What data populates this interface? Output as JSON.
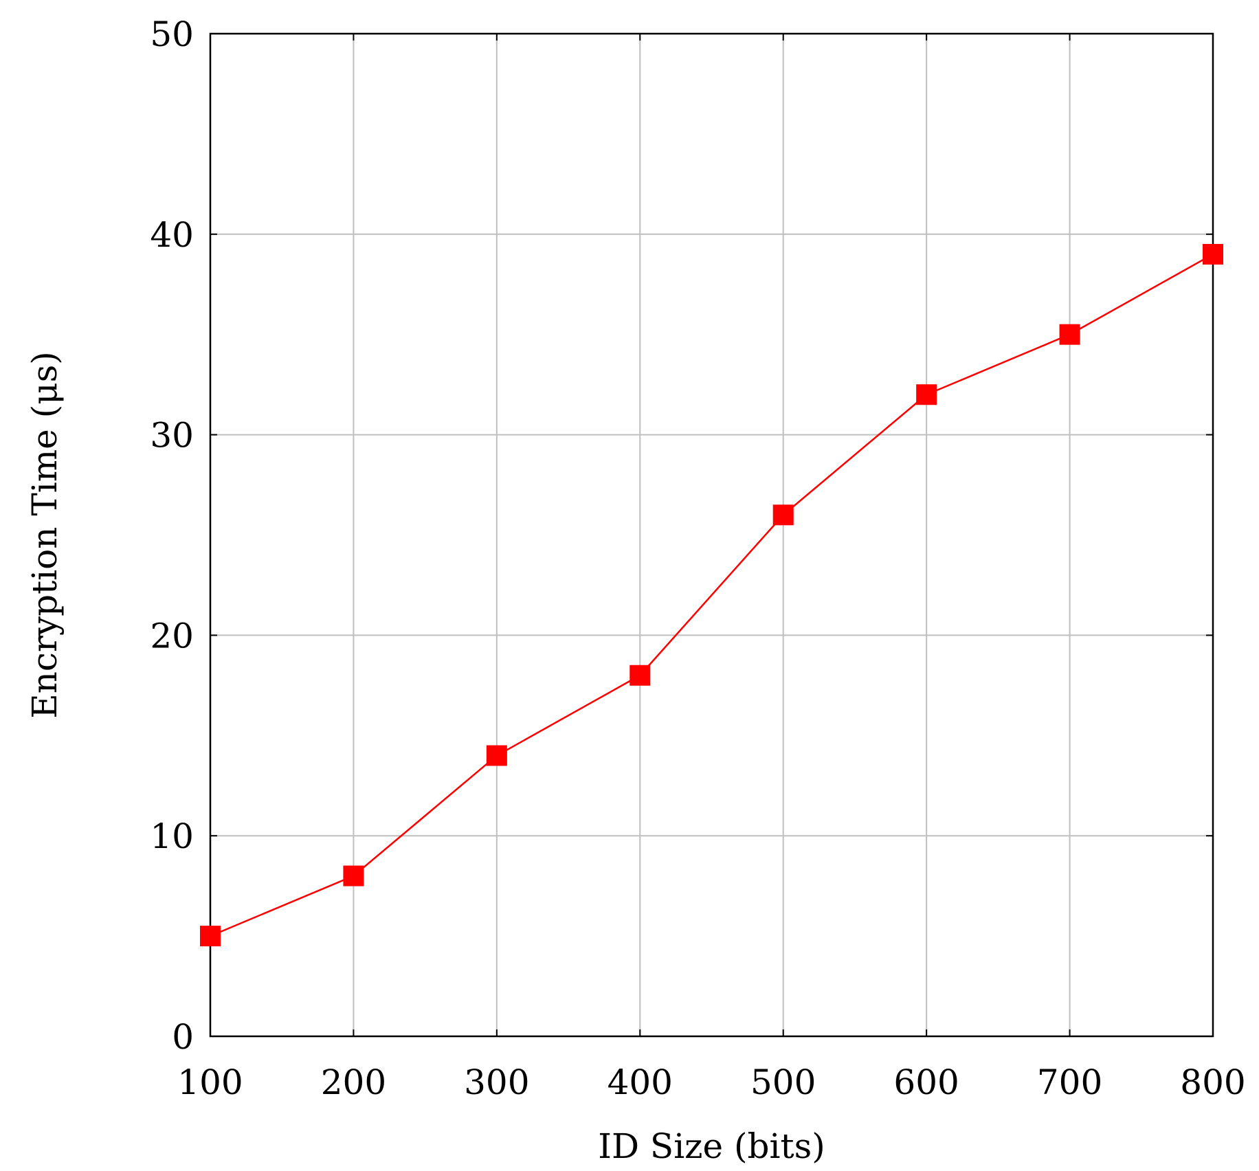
{
  "chart_data": {
    "type": "line",
    "xlabel": "ID Size (bits)",
    "ylabel": "Encryption Time (μs)",
    "xlim": [
      100,
      800
    ],
    "ylim": [
      0,
      50
    ],
    "grid": true,
    "x_ticks": [
      "100",
      "200",
      "300",
      "400",
      "500",
      "600",
      "700",
      "800"
    ],
    "y_ticks": [
      "0",
      "10",
      "20",
      "30",
      "40",
      "50"
    ],
    "series": [
      {
        "color": "#ff0000",
        "marker": "square",
        "x": [
          100,
          200,
          300,
          400,
          500,
          600,
          700,
          800
        ],
        "y": [
          5,
          8,
          14,
          18,
          26,
          32,
          35,
          39
        ]
      }
    ]
  }
}
